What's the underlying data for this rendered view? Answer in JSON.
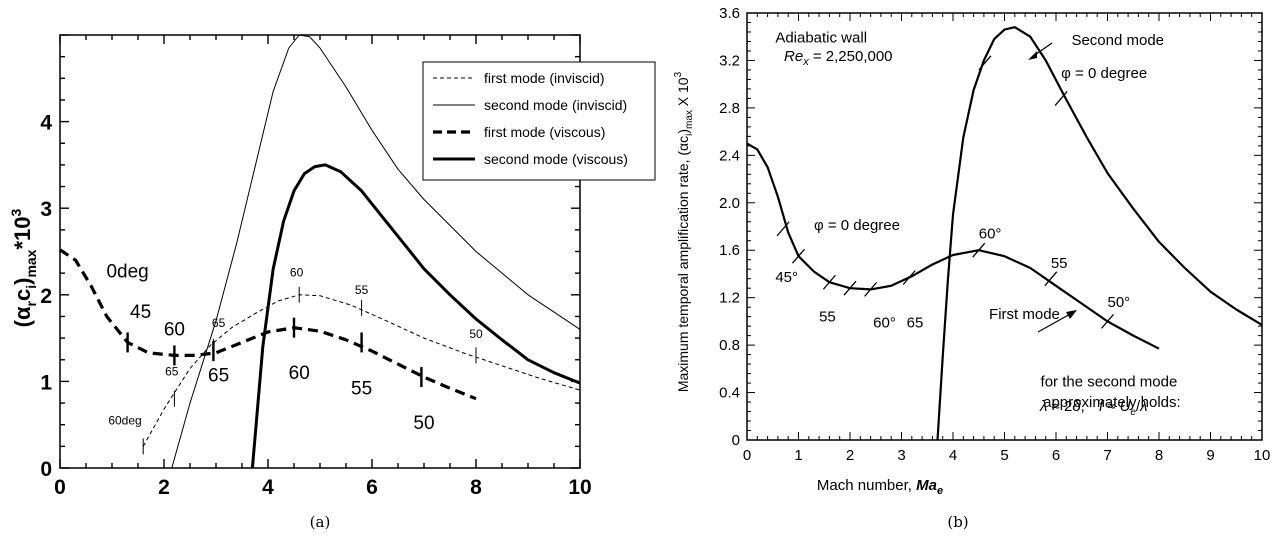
{
  "chart_data": [
    {
      "panel": "a",
      "type": "line",
      "caption": "(a)",
      "ylabel_parts": {
        "open": "(α",
        "sub1": "r",
        "mid": "c",
        "sub2": "i",
        "close": ")",
        "sub3": "max",
        "times": "*10",
        "sup": "3"
      },
      "xlim": [
        0,
        10
      ],
      "ylim": [
        0,
        5
      ],
      "x_ticks": [
        "0",
        "2",
        "4",
        "6",
        "8",
        "10"
      ],
      "y_ticks": [
        "0",
        "1",
        "2",
        "3",
        "4"
      ],
      "legend": [
        "first mode (inviscid)",
        "second mode (inviscid)",
        "first mode (viscous)",
        "second mode (viscous)"
      ],
      "legend_position": "top-right",
      "series": [
        {
          "name": "first mode (inviscid)",
          "style": "thin-dashed",
          "x": [
            1.6,
            2.0,
            2.5,
            2.9,
            3.3,
            3.8,
            4.2,
            4.6,
            5.0,
            5.6,
            6.2,
            7.0,
            7.8,
            8.5,
            9.2,
            10.0
          ],
          "y": [
            0.25,
            0.68,
            1.15,
            1.42,
            1.62,
            1.8,
            1.93,
            2.0,
            1.99,
            1.88,
            1.72,
            1.5,
            1.32,
            1.18,
            1.04,
            0.9
          ]
        },
        {
          "name": "second mode (inviscid)",
          "style": "thin-solid",
          "x": [
            2.15,
            2.5,
            3.0,
            3.4,
            3.8,
            4.1,
            4.4,
            4.6,
            4.8,
            5.0,
            5.5,
            6.0,
            6.5,
            7.0,
            7.5,
            8.0,
            8.5,
            9.0,
            9.5,
            10.0
          ],
          "y": [
            0.0,
            0.75,
            1.7,
            2.6,
            3.6,
            4.35,
            4.85,
            5.0,
            4.98,
            4.85,
            4.4,
            3.9,
            3.45,
            3.1,
            2.8,
            2.5,
            2.25,
            2.0,
            1.8,
            1.6
          ]
        },
        {
          "name": "first mode (viscous)",
          "style": "thick-dashed",
          "x": [
            0.0,
            0.3,
            0.6,
            0.9,
            1.3,
            1.7,
            2.2,
            2.6,
            3.0,
            3.5,
            4.0,
            4.5,
            5.0,
            5.5,
            6.0,
            6.5,
            7.0,
            7.5,
            8.0
          ],
          "y": [
            2.52,
            2.4,
            2.1,
            1.75,
            1.45,
            1.33,
            1.3,
            1.3,
            1.33,
            1.45,
            1.57,
            1.62,
            1.58,
            1.48,
            1.35,
            1.2,
            1.05,
            0.92,
            0.8
          ]
        },
        {
          "name": "second mode (viscous)",
          "style": "thick-solid",
          "x": [
            3.7,
            3.9,
            4.1,
            4.3,
            4.5,
            4.7,
            4.9,
            5.1,
            5.4,
            5.8,
            6.2,
            6.6,
            7.0,
            7.5,
            8.0,
            8.5,
            9.0,
            9.5,
            10.0
          ],
          "y": [
            0.0,
            1.4,
            2.3,
            2.85,
            3.2,
            3.4,
            3.48,
            3.5,
            3.42,
            3.2,
            2.9,
            2.6,
            2.3,
            2.0,
            1.72,
            1.48,
            1.25,
            1.1,
            0.98
          ]
        }
      ],
      "annotations": [
        {
          "text": "0deg",
          "x": 1.3,
          "y": 2.2,
          "size": "big"
        },
        {
          "text": "45",
          "x": 1.55,
          "y": 1.73,
          "size": "big"
        },
        {
          "text": "60",
          "x": 2.2,
          "y": 1.53,
          "size": "big"
        },
        {
          "text": "65",
          "x": 3.05,
          "y": 1.0,
          "size": "big"
        },
        {
          "text": "60",
          "x": 4.6,
          "y": 1.03,
          "size": "big"
        },
        {
          "text": "55",
          "x": 5.8,
          "y": 0.85,
          "size": "big"
        },
        {
          "text": "50",
          "x": 7.0,
          "y": 0.45,
          "size": "big"
        },
        {
          "text": "60deg",
          "x": 1.25,
          "y": 0.5,
          "size": "small"
        },
        {
          "text": "65",
          "x": 2.15,
          "y": 1.07,
          "size": "small"
        },
        {
          "text": "65",
          "x": 3.05,
          "y": 1.63,
          "size": "small"
        },
        {
          "text": "60",
          "x": 4.55,
          "y": 2.21,
          "size": "small"
        },
        {
          "text": "55",
          "x": 5.8,
          "y": 2.01,
          "size": "small"
        },
        {
          "text": "50",
          "x": 8.0,
          "y": 1.5,
          "size": "small"
        }
      ],
      "tick_marks_big": [
        [
          1.3,
          1.45
        ],
        [
          2.2,
          1.3
        ],
        [
          2.95,
          1.35
        ],
        [
          4.5,
          1.62
        ],
        [
          5.8,
          1.45
        ],
        [
          6.95,
          1.05
        ]
      ],
      "tick_marks_small": [
        [
          1.6,
          0.25
        ],
        [
          2.2,
          0.8
        ],
        [
          2.95,
          1.4
        ],
        [
          4.6,
          2.0
        ],
        [
          5.8,
          1.85
        ],
        [
          8.0,
          1.3
        ]
      ]
    },
    {
      "panel": "b",
      "type": "line",
      "caption": "(b)",
      "xlabel": "Mach number, ",
      "xlabel_sym": "Ma",
      "xlabel_sub": "e",
      "ylabel": "Maximum temporal amplification rate, (αc",
      "ylabel_sub1": "i",
      "ylabel_close": ")",
      "ylabel_sub2": "max",
      "ylabel_times": " X 10",
      "ylabel_sup": "3",
      "xlim": [
        0,
        10
      ],
      "ylim": [
        0,
        3.6
      ],
      "x_ticks": [
        "0",
        "1",
        "2",
        "3",
        "4",
        "5",
        "6",
        "7",
        "8",
        "9",
        "10"
      ],
      "y_ticks": [
        "0",
        "0.4",
        "0.8",
        "1.2",
        "1.6",
        "2.0",
        "2.4",
        "2.8",
        "3.2",
        "3.6"
      ],
      "series": [
        {
          "name": "Second mode",
          "x": [
            3.7,
            3.8,
            3.9,
            4.0,
            4.2,
            4.4,
            4.6,
            4.8,
            5.0,
            5.2,
            5.5,
            5.8,
            6.2,
            6.6,
            7.0,
            7.5,
            8.0,
            8.5,
            9.0,
            9.5,
            10.0
          ],
          "y": [
            0.0,
            0.7,
            1.35,
            1.9,
            2.55,
            2.95,
            3.2,
            3.38,
            3.46,
            3.48,
            3.4,
            3.2,
            2.87,
            2.55,
            2.25,
            1.95,
            1.67,
            1.45,
            1.25,
            1.1,
            0.97
          ]
        },
        {
          "name": "First mode",
          "x": [
            0.0,
            0.2,
            0.4,
            0.6,
            0.8,
            1.0,
            1.3,
            1.6,
            2.0,
            2.4,
            2.8,
            3.2,
            3.6,
            4.0,
            4.5,
            5.0,
            5.5,
            6.0,
            6.5,
            7.0,
            7.5,
            8.0
          ],
          "y": [
            2.5,
            2.45,
            2.3,
            2.05,
            1.75,
            1.55,
            1.42,
            1.33,
            1.28,
            1.27,
            1.3,
            1.38,
            1.48,
            1.56,
            1.6,
            1.55,
            1.45,
            1.3,
            1.15,
            1.0,
            0.88,
            0.77
          ]
        }
      ],
      "annotations": [
        {
          "text": "Adiabatic wall",
          "x": 0.55,
          "y": 3.35
        },
        {
          "text": "Second mode",
          "x": 6.3,
          "y": 3.33
        },
        {
          "text": "φ = 0 degree",
          "x": 6.1,
          "y": 3.05
        },
        {
          "text": "φ = 0 degree",
          "x": 1.3,
          "y": 1.77
        },
        {
          "text": "60°",
          "x": 4.5,
          "y": 1.7
        },
        {
          "text": "55",
          "x": 5.9,
          "y": 1.45
        },
        {
          "text": "45°",
          "x": 0.55,
          "y": 1.33
        },
        {
          "text": "55",
          "x": 1.4,
          "y": 1.0
        },
        {
          "text": "60°",
          "x": 2.45,
          "y": 0.95
        },
        {
          "text": "65",
          "x": 3.1,
          "y": 0.95
        },
        {
          "text": "First mode",
          "x": 4.7,
          "y": 1.02
        },
        {
          "text": "50°",
          "x": 7.0,
          "y": 1.12
        },
        {
          "text": "for the second mode",
          "x": 5.7,
          "y": 0.45
        },
        {
          "text": "approximately holds:",
          "x": 5.75,
          "y": 0.28
        }
      ],
      "re_label": {
        "sym": "Re",
        "sub": "x",
        "rest": " = 2,250,000"
      },
      "formula": {
        "lam": "λ",
        "approx1": " ≈ 2",
        "delta": "δ",
        "comma": ",",
        "f": "f",
        "approx2": " ≈ ",
        "U": "U",
        "Usub": "e",
        "slash": "/",
        "lam2": "λ"
      },
      "tick_marks": [
        [
          1.0,
          1.55
        ],
        [
          1.6,
          1.33
        ],
        [
          2.0,
          1.28
        ],
        [
          2.4,
          1.27
        ],
        [
          3.15,
          1.37
        ],
        [
          4.5,
          1.6
        ],
        [
          5.9,
          1.36
        ],
        [
          7.0,
          1.0
        ],
        [
          4.62,
          3.18
        ],
        [
          6.1,
          2.88
        ],
        [
          0.7,
          1.78
        ]
      ]
    }
  ]
}
